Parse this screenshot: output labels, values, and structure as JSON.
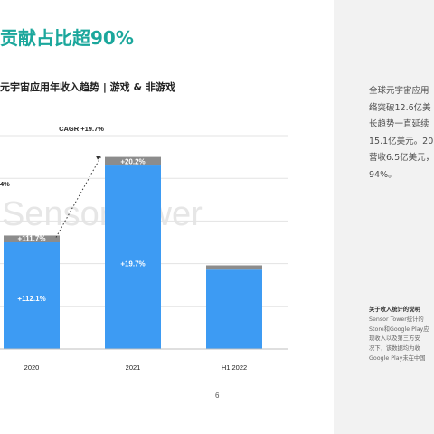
{
  "header": {
    "title": "贡献占比超90%"
  },
  "chart_data": {
    "type": "bar",
    "title": "元宇宙应用年收入趋势 | 游戏 & 非游戏",
    "categories": [
      "2020",
      "2021",
      "H1 2022"
    ],
    "series": [
      {
        "values": [
          1.25,
          2.15,
          0.93
        ],
        "color": "#3d9bf3"
      },
      {
        "values": [
          0.08,
          0.1,
          0.05
        ],
        "color": "#8c8c8c"
      }
    ],
    "ylim": [
      0,
      2.5
    ],
    "grid": true,
    "bar_labels": [
      "+112.1%",
      "+19.7%",
      ""
    ],
    "top_labels": [
      "+111.7%",
      "+20.2%",
      ""
    ],
    "cagr_label": "CAGR +19.7%",
    "partial_label": "4%"
  },
  "watermark": "SensorTower",
  "page_number": "6",
  "panel": {
    "lines": [
      "全球元宇宙应用",
      "络突破12.6亿美",
      "长趋势一直延续",
      "15.1亿美元。20",
      "营收6.5亿美元，",
      "94%。"
    ],
    "note_title": "关于收入统计的说明",
    "note_lines": [
      "Sensor Tower统计的",
      "Store和Google Play应",
      "现收入以及第三方安",
      "况下，该数据均为收",
      "Google Play未在中国"
    ]
  },
  "colors": {
    "accent": "#1ba79c",
    "game": "#3d9bf3",
    "nongame": "#8c8c8c"
  }
}
